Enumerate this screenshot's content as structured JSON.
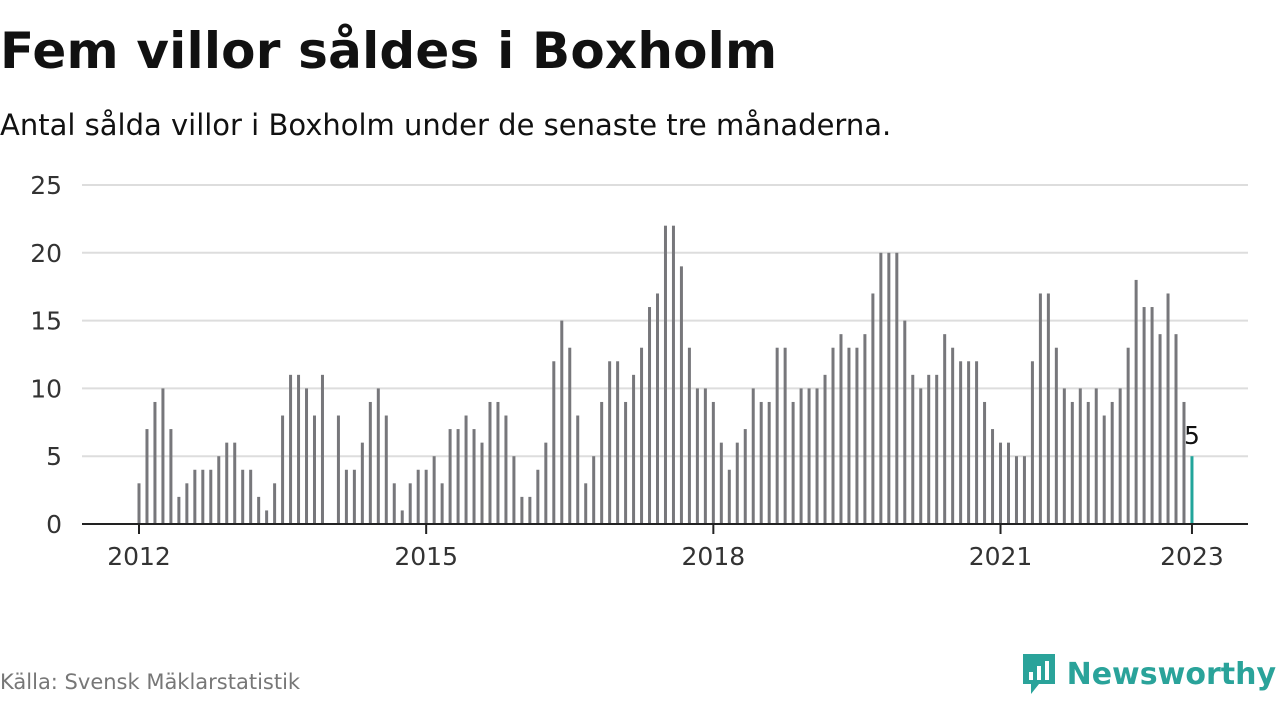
{
  "chart_data": {
    "type": "bar",
    "title": "Fem villor såldes i Boxholm",
    "subtitle": "Antal sålda villor i Boxholm under de senaste tre månaderna.",
    "xlabel": "",
    "ylabel": "",
    "ylim": [
      0,
      25
    ],
    "yticks": [
      0,
      5,
      10,
      15,
      20,
      25
    ],
    "grid": true,
    "xticks": [
      {
        "label": "2012",
        "index": 0
      },
      {
        "label": "2015",
        "index": 36
      },
      {
        "label": "2018",
        "index": 72
      },
      {
        "label": "2021",
        "index": 108
      },
      {
        "label": "2023",
        "index": 132
      }
    ],
    "x_start": "2012-01",
    "x_end": "2023-01",
    "values": [
      3,
      7,
      9,
      10,
      7,
      2,
      3,
      4,
      4,
      4,
      5,
      6,
      6,
      4,
      4,
      2,
      1,
      3,
      8,
      11,
      11,
      10,
      8,
      11,
      0,
      8,
      4,
      4,
      6,
      9,
      10,
      8,
      3,
      1,
      3,
      4,
      4,
      5,
      3,
      7,
      7,
      8,
      7,
      6,
      9,
      9,
      8,
      5,
      2,
      2,
      4,
      6,
      12,
      15,
      13,
      8,
      3,
      5,
      9,
      12,
      12,
      9,
      11,
      13,
      16,
      17,
      22,
      22,
      19,
      13,
      10,
      10,
      9,
      6,
      4,
      6,
      7,
      10,
      9,
      9,
      13,
      13,
      9,
      10,
      10,
      10,
      11,
      13,
      14,
      13,
      13,
      14,
      17,
      20,
      20,
      20,
      15,
      11,
      10,
      11,
      11,
      14,
      13,
      12,
      12,
      12,
      9,
      7,
      6,
      6,
      5,
      5,
      12,
      17,
      17,
      13,
      10,
      9,
      10,
      9,
      10,
      8,
      9,
      10,
      13,
      18,
      16,
      16,
      14,
      17,
      14,
      9,
      5
    ],
    "highlight": {
      "index": 132,
      "label": "5"
    },
    "colors": {
      "bar": "#77777b",
      "highlight": "#22a59b",
      "grid": "#dddddd",
      "axis": "#222222"
    }
  },
  "footer": {
    "source": "Källa: Svensk Mäklarstatistik",
    "brand": "Newsworthy",
    "brand_icon": "bar-chart-icon"
  }
}
